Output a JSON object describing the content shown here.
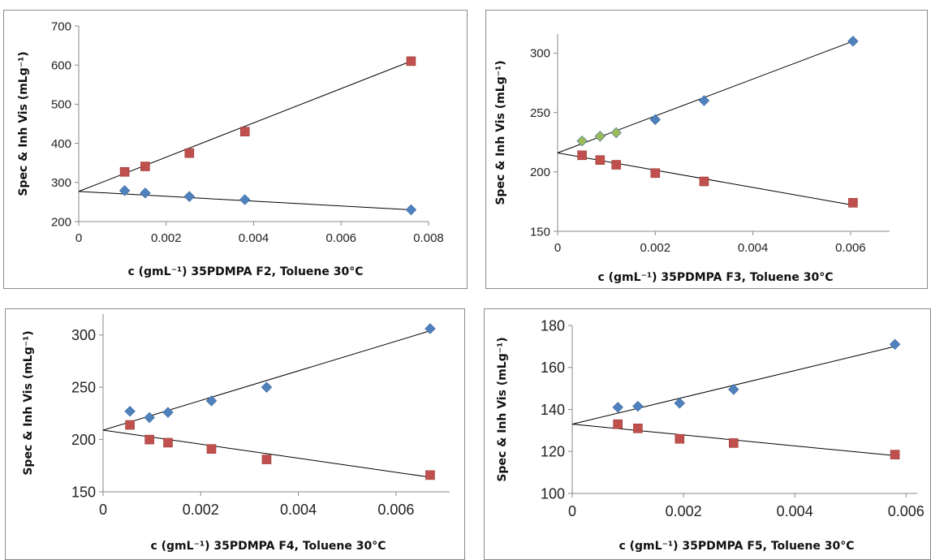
{
  "chart_data": [
    {
      "type": "scatter",
      "xlabel": "c (gmL⁻¹) 35PDMPA F2, Toluene 30°C",
      "ylabel": "Spec & Inh Vis (mLg⁻¹)",
      "xlim": [
        0,
        0.008
      ],
      "ylim": [
        200,
        700
      ],
      "xticks": [
        "0",
        "0.002",
        "0.004",
        "0.006",
        "0.008"
      ],
      "yticks": [
        "200",
        "300",
        "400",
        "500",
        "600",
        "700"
      ],
      "series": [
        {
          "marker": "square",
          "color": "#c0504d",
          "points": [
            [
              0.00105,
              327
            ],
            [
              0.00152,
              341
            ],
            [
              0.00253,
              375
            ],
            [
              0.0038,
              430
            ],
            [
              0.0076,
              610
            ]
          ],
          "trendline": [
            [
              0,
              277
            ],
            [
              0.0076,
              610
            ]
          ]
        },
        {
          "marker": "diamond",
          "color": "#4f81bd",
          "points": [
            [
              0.00105,
              279
            ],
            [
              0.00152,
              273
            ],
            [
              0.00253,
              264
            ],
            [
              0.0038,
              256
            ],
            [
              0.0076,
              230
            ]
          ],
          "trendline": [
            [
              0,
              277
            ],
            [
              0.0076,
              230
            ]
          ]
        }
      ]
    },
    {
      "type": "scatter",
      "xlabel": "c (gmL⁻¹) 35PDMPA F3, Toluene 30°C",
      "ylabel": "Spec & Inh Vis (mLg⁻¹)",
      "xlim": [
        0,
        0.0068
      ],
      "ylim": [
        150,
        316
      ],
      "xticks": [
        "0",
        "0.002",
        "0.004",
        "0.006"
      ],
      "yticks": [
        "150",
        "200",
        "250",
        "300"
      ],
      "series": [
        {
          "marker": "diamond",
          "color": "#4f81bd",
          "points": [
            [
              0.002,
              244
            ],
            [
              0.003,
              260
            ],
            [
              0.00605,
              310
            ]
          ],
          "trendline": [
            [
              0,
              216
            ],
            [
              0.00605,
              310
            ]
          ]
        },
        {
          "marker": "diamond",
          "color": "#9bbb59",
          "points": [
            [
              0.0005,
              226
            ],
            [
              0.00087,
              230
            ],
            [
              0.0012,
              233
            ]
          ]
        },
        {
          "marker": "square",
          "color": "#c0504d",
          "points": [
            [
              0.0005,
              214
            ],
            [
              0.00087,
              210
            ],
            [
              0.0012,
              206
            ],
            [
              0.002,
              199
            ],
            [
              0.003,
              192
            ],
            [
              0.00605,
              174
            ]
          ],
          "trendline": [
            [
              0,
              216
            ],
            [
              0.00605,
              172
            ]
          ]
        }
      ]
    },
    {
      "type": "scatter",
      "xlabel": "c (gmL⁻¹) 35PDMPA F4, Toluene 30°C",
      "ylabel": "Spec & Inh Vis (mLg⁻¹)",
      "xlim": [
        0,
        0.0071
      ],
      "ylim": [
        150,
        320
      ],
      "xticks": [
        "0",
        "0.002",
        "0.004",
        "0.006"
      ],
      "yticks": [
        "150",
        "200",
        "250",
        "300"
      ],
      "series": [
        {
          "marker": "diamond",
          "color": "#4f81bd",
          "points": [
            [
              0.00055,
              227
            ],
            [
              0.00095,
              221
            ],
            [
              0.00133,
              226
            ],
            [
              0.00222,
              237
            ],
            [
              0.00335,
              250
            ],
            [
              0.0067,
              306
            ]
          ],
          "trendline": [
            [
              0,
              209
            ],
            [
              0.0067,
              304
            ]
          ]
        },
        {
          "marker": "square",
          "color": "#c0504d",
          "points": [
            [
              0.00055,
              214
            ],
            [
              0.00095,
              200
            ],
            [
              0.00133,
              197
            ],
            [
              0.00222,
              191
            ],
            [
              0.00335,
              181
            ],
            [
              0.0067,
              166
            ]
          ],
          "trendline": [
            [
              0,
              209
            ],
            [
              0.0067,
              164
            ]
          ]
        }
      ]
    },
    {
      "type": "scatter",
      "xlabel": "c (gmL⁻¹) 35PDMPA F5, Toluene 30°C",
      "ylabel": "Spec & Inh Vis (mLg⁻¹)",
      "xlim": [
        0,
        0.0062
      ],
      "ylim": [
        100,
        180
      ],
      "xticks": [
        "0",
        "0.002",
        "0.004",
        "0.006"
      ],
      "yticks": [
        "100",
        "120",
        "140",
        "160",
        "180"
      ],
      "series": [
        {
          "marker": "diamond",
          "color": "#4f81bd",
          "points": [
            [
              0.00082,
              141
            ],
            [
              0.00118,
              141.5
            ],
            [
              0.00193,
              143
            ],
            [
              0.0029,
              149.5
            ],
            [
              0.0058,
              171
            ]
          ],
          "trendline": [
            [
              0,
              133
            ],
            [
              0.0058,
              170
            ]
          ]
        },
        {
          "marker": "square",
          "color": "#c0504d",
          "points": [
            [
              0.00082,
              133
            ],
            [
              0.00118,
              131
            ],
            [
              0.00193,
              126
            ],
            [
              0.0029,
              124
            ],
            [
              0.0058,
              118.5
            ]
          ],
          "trendline": [
            [
              0,
              133
            ],
            [
              0.0058,
              118
            ]
          ]
        }
      ]
    }
  ]
}
